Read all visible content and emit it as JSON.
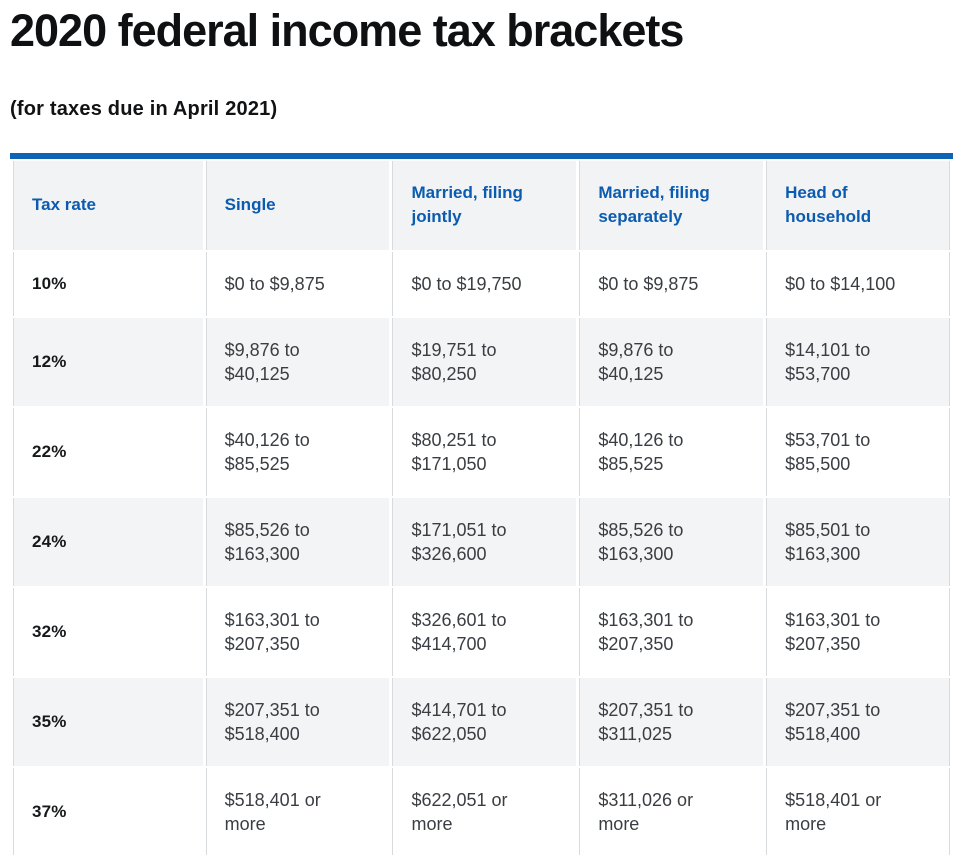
{
  "page": {
    "title": "2020 federal income tax brackets",
    "subtitle": "(for taxes due in April 2021)"
  },
  "colors": {
    "accent_blue": "#0e63b5",
    "header_text_blue": "#0b5bb0",
    "header_bg": "#f2f3f4",
    "row_alt_bg": "#f3f4f6",
    "cell_border": "#d8dbde",
    "bottom_border": "#c7ccd1",
    "body_text": "#3a3e42"
  },
  "table": {
    "headers": [
      "Tax rate",
      "Single",
      "Married, filing\njointly",
      "Married, filing\nseparately",
      "Head of\nhousehold"
    ],
    "rows": [
      [
        "10%",
        "$0 to $9,875",
        "$0 to $19,750",
        "$0 to $9,875",
        "$0 to $14,100"
      ],
      [
        "12%",
        "$9,876 to\n$40,125",
        "$19,751 to\n$80,250",
        "$9,876 to\n$40,125",
        "$14,101 to\n$53,700"
      ],
      [
        "22%",
        "$40,126 to\n$85,525",
        "$80,251 to\n$171,050",
        "$40,126 to\n$85,525",
        "$53,701 to\n$85,500"
      ],
      [
        "24%",
        "$85,526 to\n$163,300",
        "$171,051 to\n$326,600",
        "$85,526 to\n$163,300",
        "$85,501 to\n$163,300"
      ],
      [
        "32%",
        "$163,301 to\n$207,350",
        "$326,601 to\n$414,700",
        "$163,301 to\n$207,350",
        "$163,301 to\n$207,350"
      ],
      [
        "35%",
        "$207,351 to\n$518,400",
        "$414,701 to\n$622,050",
        "$207,351 to\n$311,025",
        "$207,351 to\n$518,400"
      ],
      [
        "37%",
        "$518,401 or\nmore",
        "$622,051 or\nmore",
        "$311,026 or\nmore",
        "$518,401 or\nmore"
      ]
    ]
  },
  "chart_data": {
    "type": "table",
    "title": "2020 federal income tax brackets",
    "subtitle": "(for taxes due in April 2021)",
    "columns": [
      "Tax rate",
      "Single",
      "Married, filing jointly",
      "Married, filing separately",
      "Head of household"
    ],
    "rows": [
      [
        "10%",
        "$0 to $9,875",
        "$0 to $19,750",
        "$0 to $9,875",
        "$0 to $14,100"
      ],
      [
        "12%",
        "$9,876 to $40,125",
        "$19,751 to $80,250",
        "$9,876 to $40,125",
        "$14,101 to $53,700"
      ],
      [
        "22%",
        "$40,126 to $85,525",
        "$80,251 to $171,050",
        "$40,126 to $85,525",
        "$53,701 to $85,500"
      ],
      [
        "24%",
        "$85,526 to $163,300",
        "$171,051 to $326,600",
        "$85,526 to $163,300",
        "$85,501 to $163,300"
      ],
      [
        "32%",
        "$163,301 to $207,350",
        "$326,601 to $414,700",
        "$163,301 to $207,350",
        "$163,301 to $207,350"
      ],
      [
        "35%",
        "$207,351 to $518,400",
        "$414,701 to $622,050",
        "$207,351 to $311,025",
        "$207,351 to $518,400"
      ],
      [
        "37%",
        "$518,401 or more",
        "$622,051 or more",
        "$311,026 or more",
        "$518,401 or more"
      ]
    ]
  }
}
